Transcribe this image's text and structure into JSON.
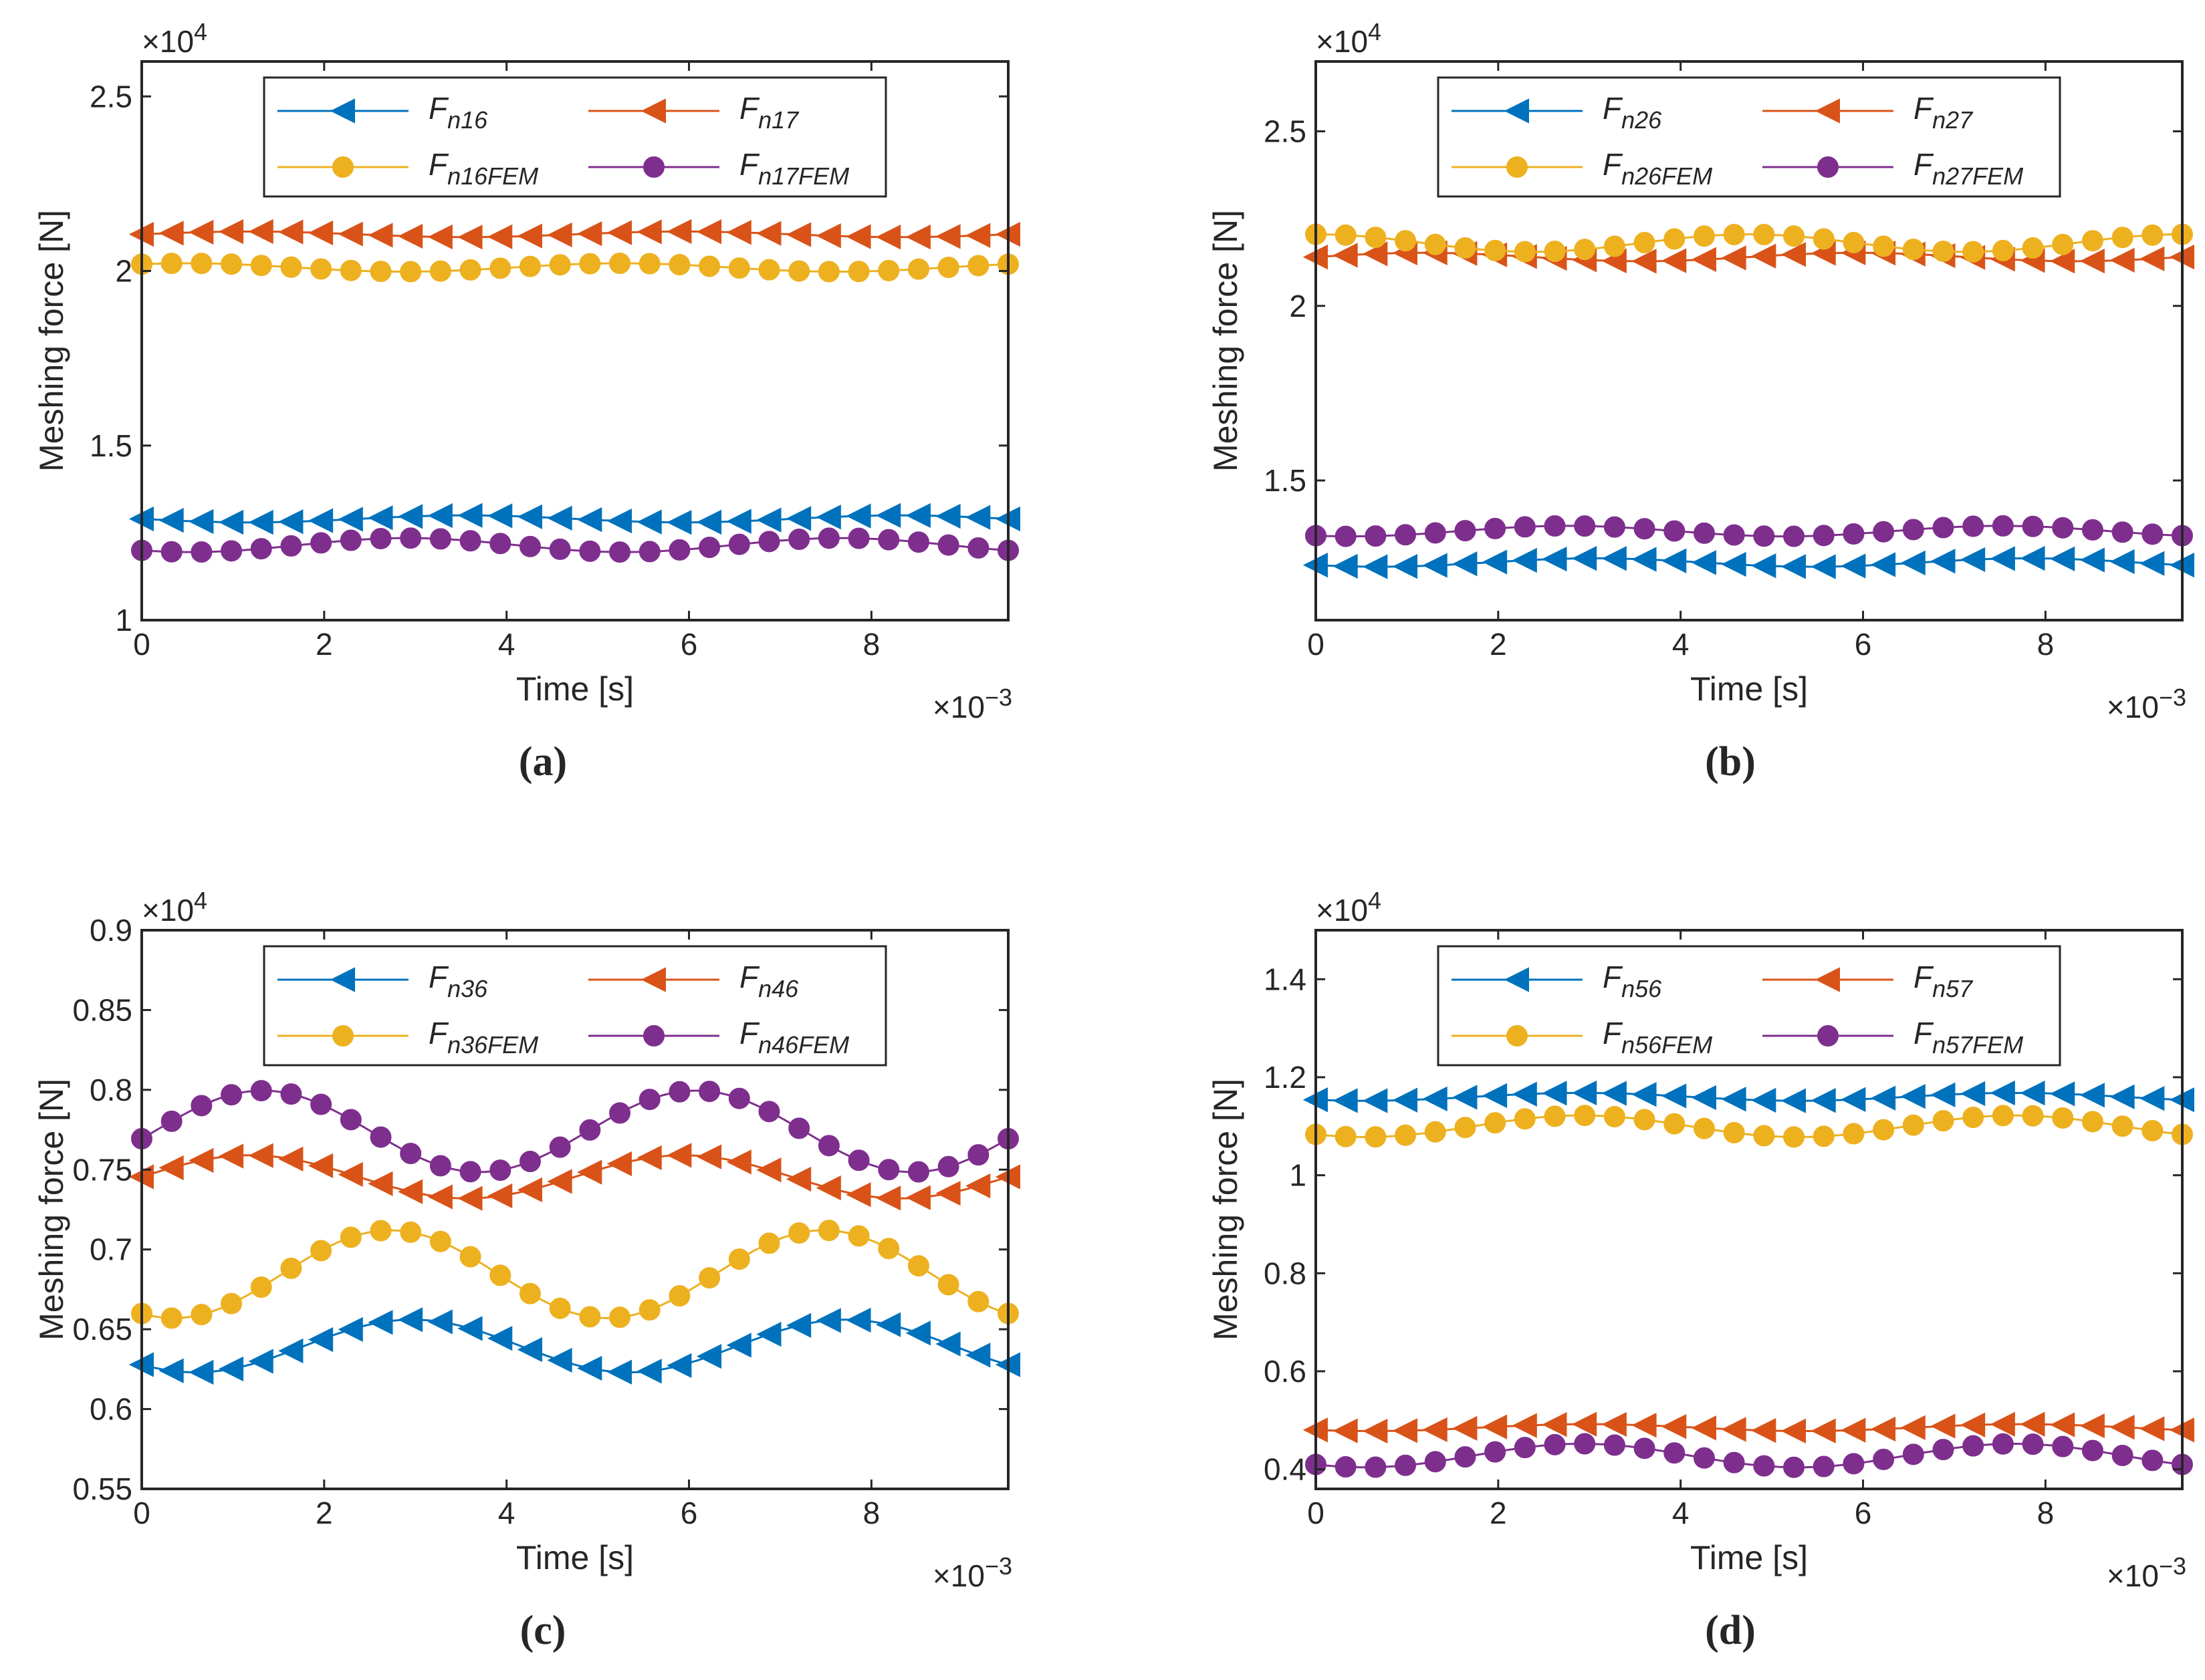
{
  "figure": {
    "x_values": [
      0,
      0.5,
      1,
      1.5,
      2,
      2.5,
      3,
      3.5,
      4,
      4.5,
      5,
      5.5,
      6,
      6.5,
      7,
      7.5,
      8,
      8.5,
      9,
      9.5
    ],
    "x_markers_note": "markers every 0.32e-3 s"
  },
  "colors": {
    "blue": "#0072BD",
    "orange": "#D95319",
    "yellow": "#EDB120",
    "purple": "#7E2F8E",
    "axis": "#262626"
  },
  "chart_data": [
    {
      "id": "a",
      "type": "line",
      "caption": "(a)",
      "xlabel": "Time [s]",
      "ylabel": "Meshing force [N]",
      "x_exponent_base": "×10",
      "x_exponent": "−3",
      "y_exponent_base": "×10",
      "y_exponent": "4",
      "xlim": [
        0,
        9.5
      ],
      "ylim": [
        1,
        2.6
      ],
      "xticks": [
        0,
        2,
        4,
        6,
        8
      ],
      "xtick_labels": [
        "0",
        "2",
        "4",
        "6",
        "8"
      ],
      "yticks": [
        1,
        1.5,
        2,
        2.5
      ],
      "ytick_labels": [
        "1",
        "1.5",
        "2",
        "2.5"
      ],
      "legend": {
        "placement": "top-center",
        "columns": 2
      },
      "series": [
        {
          "name": "Fn16",
          "label_main": "F",
          "label_sub": "n16",
          "marker": "triangle-left",
          "color": "#0072BD",
          "mean": 1.29,
          "amp": 0.01,
          "period": 4.75,
          "phase": 3.14
        },
        {
          "name": "Fn17",
          "label_main": "F",
          "label_sub": "n17",
          "marker": "triangle-left",
          "color": "#D95319",
          "mean": 2.105,
          "amp": 0.008,
          "period": 4.75,
          "phase": 0
        },
        {
          "name": "Fn16FEM",
          "label_main": "F",
          "label_sub": "n16FEM",
          "marker": "circle",
          "color": "#EDB120",
          "mean": 2.01,
          "amp": 0.012,
          "period": 4.75,
          "phase": 0.9
        },
        {
          "name": "Fn17FEM",
          "label_main": "F",
          "label_sub": "n17FEM",
          "marker": "circle",
          "color": "#7E2F8E",
          "mean": 1.215,
          "amp": 0.02,
          "period": 4.75,
          "phase": 4.0
        }
      ]
    },
    {
      "id": "b",
      "type": "line",
      "caption": "(b)",
      "xlabel": "Time [s]",
      "ylabel": "Meshing force [N]",
      "x_exponent_base": "×10",
      "x_exponent": "−3",
      "y_exponent_base": "×10",
      "y_exponent": "4",
      "xlim": [
        0,
        9.5
      ],
      "ylim": [
        1.1,
        2.7
      ],
      "xticks": [
        0,
        2,
        4,
        6,
        8
      ],
      "xtick_labels": [
        "0",
        "2",
        "4",
        "6",
        "8"
      ],
      "yticks": [
        1.5,
        2,
        2.5
      ],
      "ytick_labels": [
        "1.5",
        "2",
        "2.5"
      ],
      "legend": {
        "placement": "top-center",
        "columns": 2
      },
      "series": [
        {
          "name": "Fn26",
          "label_main": "F",
          "label_sub": "n26",
          "marker": "triangle-left",
          "color": "#0072BD",
          "mean": 1.265,
          "amp": 0.012,
          "period": 4.75,
          "phase": 3.8
        },
        {
          "name": "Fn27",
          "label_main": "F",
          "label_sub": "n27",
          "marker": "triangle-left",
          "color": "#D95319",
          "mean": 2.14,
          "amp": 0.012,
          "period": 4.75,
          "phase": 0
        },
        {
          "name": "Fn26FEM",
          "label_main": "F",
          "label_sub": "n26FEM",
          "marker": "circle",
          "color": "#EDB120",
          "mean": 2.18,
          "amp": 0.025,
          "period": 4.75,
          "phase": 1.57
        },
        {
          "name": "Fn27FEM",
          "label_main": "F",
          "label_sub": "n27FEM",
          "marker": "circle",
          "color": "#7E2F8E",
          "mean": 1.355,
          "amp": 0.015,
          "period": 4.75,
          "phase": 4.2
        }
      ]
    },
    {
      "id": "c",
      "type": "line",
      "caption": "(c)",
      "xlabel": "Time [s]",
      "ylabel": "Meshing force [N]",
      "x_exponent_base": "×10",
      "x_exponent": "−3",
      "y_exponent_base": "×10",
      "y_exponent": "4",
      "xlim": [
        0,
        9.5
      ],
      "ylim": [
        0.55,
        0.9
      ],
      "xticks": [
        0,
        2,
        4,
        6,
        8
      ],
      "xtick_labels": [
        "0",
        "2",
        "4",
        "6",
        "8"
      ],
      "yticks": [
        0.55,
        0.6,
        0.65,
        0.7,
        0.75,
        0.8,
        0.85,
        0.9
      ],
      "ytick_labels": [
        "0.55",
        "0.6",
        "0.65",
        "0.7",
        "0.75",
        "0.8",
        "0.85",
        "0.9"
      ],
      "legend": {
        "placement": "top-center",
        "columns": 2
      },
      "series": [
        {
          "name": "Fn36",
          "label_main": "F",
          "label_sub": "n36",
          "marker": "triangle-left",
          "color": "#0072BD",
          "mean": 0.6395,
          "amp": 0.0165,
          "period": 4.75,
          "phase": 3.93
        },
        {
          "name": "Fn46",
          "label_main": "F",
          "label_sub": "n46",
          "marker": "triangle-left",
          "color": "#D95319",
          "mean": 0.7455,
          "amp": 0.0135,
          "period": 4.75,
          "phase": 0.0
        },
        {
          "name": "Fn36FEM",
          "label_main": "F",
          "label_sub": "n36FEM",
          "marker": "circle",
          "color": "#EDB120",
          "mean": 0.6845,
          "amp": 0.0275,
          "period": 4.75,
          "phase": 4.25
        },
        {
          "name": "Fn46FEM",
          "label_main": "F",
          "label_sub": "n46FEM",
          "marker": "circle",
          "color": "#7E2F8E",
          "mean": 0.774,
          "amp": 0.0255,
          "period": 4.75,
          "phase": 6.1
        }
      ]
    },
    {
      "id": "d",
      "type": "line",
      "caption": "(d)",
      "xlabel": "Time [s]",
      "ylabel": "Meshing force [N]",
      "x_exponent_base": "×10",
      "x_exponent": "−3",
      "y_exponent_base": "×10",
      "y_exponent": "4",
      "xlim": [
        0,
        9.5
      ],
      "ylim": [
        0.36,
        1.5
      ],
      "xticks": [
        0,
        2,
        4,
        6,
        8
      ],
      "xtick_labels": [
        "0",
        "2",
        "4",
        "6",
        "8"
      ],
      "yticks": [
        0.4,
        0.6,
        0.8,
        1,
        1.2,
        1.4
      ],
      "ytick_labels": [
        "0.4",
        "0.6",
        "0.8",
        "1",
        "1.2",
        "1.4"
      ],
      "legend": {
        "placement": "top-center",
        "columns": 2
      },
      "series": [
        {
          "name": "Fn56",
          "label_main": "F",
          "label_sub": "n56",
          "marker": "triangle-left",
          "color": "#0072BD",
          "mean": 1.16,
          "amp": 0.008,
          "period": 4.75,
          "phase": 4.0
        },
        {
          "name": "Fn57",
          "label_main": "F",
          "label_sub": "n57",
          "marker": "triangle-left",
          "color": "#D95319",
          "mean": 0.485,
          "amp": 0.007,
          "period": 4.75,
          "phase": 3.9
        },
        {
          "name": "Fn56FEM",
          "label_main": "F",
          "label_sub": "n56FEM",
          "marker": "circle",
          "color": "#EDB120",
          "mean": 1.1,
          "amp": 0.022,
          "period": 4.75,
          "phase": 4.0
        },
        {
          "name": "Fn57FEM",
          "label_main": "F",
          "label_sub": "n57FEM",
          "marker": "circle",
          "color": "#7E2F8E",
          "mean": 0.428,
          "amp": 0.024,
          "period": 4.75,
          "phase": 4.0
        }
      ]
    }
  ]
}
